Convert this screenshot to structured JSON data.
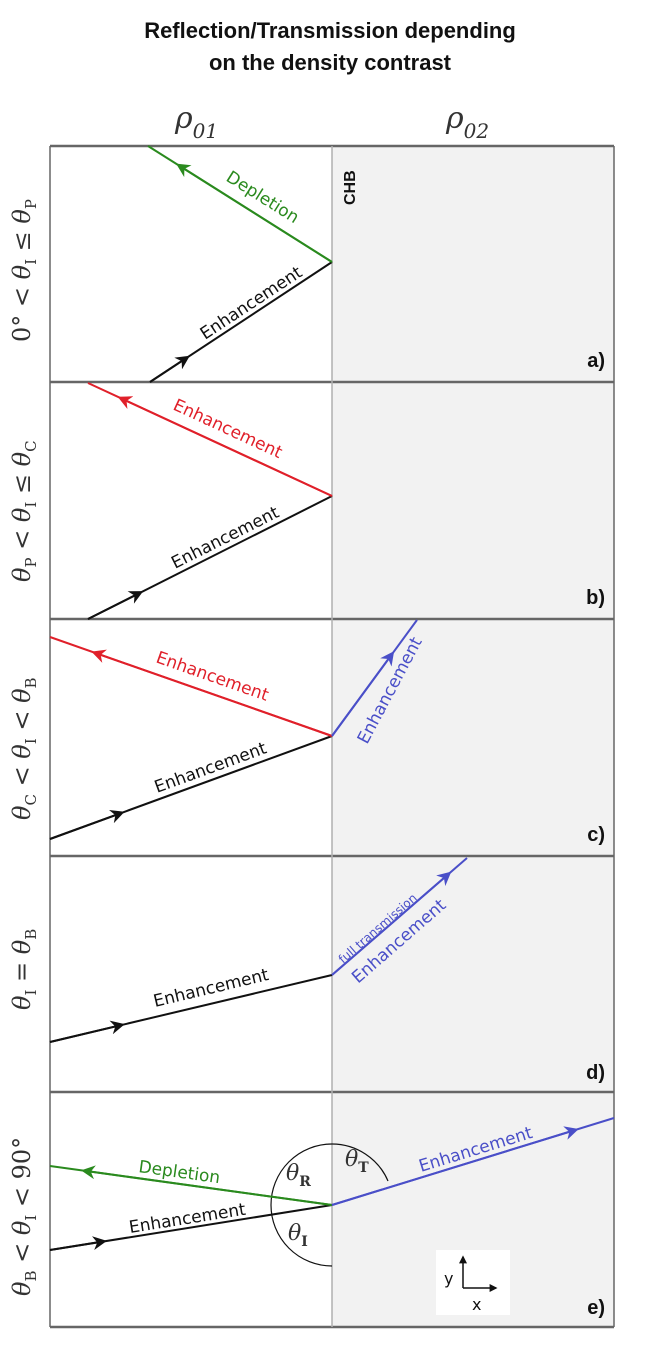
{
  "title_line1": "Reflection/Transmission depending",
  "title_line2": "on the density contrast",
  "columns": {
    "left": {
      "symbol": "ρ",
      "sub": "01"
    },
    "right": {
      "symbol": "ρ",
      "sub": "02"
    }
  },
  "boundary_label": "CHB",
  "colors": {
    "incident": "#111111",
    "depletion": "#2a8a1e",
    "enhancement_red": "#e0202a",
    "transmitted": "#4a4fc8",
    "medium2_fill": "#f2f2f2",
    "frame": "#666666"
  },
  "panels": [
    {
      "letter": "a)",
      "condition": {
        "pre": "0° < ",
        "mid": "θ",
        "mid_sub": "I",
        "rel": " ≤ ",
        "post": "θ",
        "post_sub": "P"
      },
      "rays": [
        {
          "kind": "incident",
          "label": "Enhancement"
        },
        {
          "kind": "reflected",
          "label": "Depletion"
        }
      ]
    },
    {
      "letter": "b)",
      "condition": {
        "pre": "θ",
        "pre_sub": "P",
        "rel1": " < ",
        "mid": "θ",
        "mid_sub": "I",
        "rel": " ≤ ",
        "post": "θ",
        "post_sub": "C"
      },
      "rays": [
        {
          "kind": "incident",
          "label": "Enhancement"
        },
        {
          "kind": "reflected",
          "label": "Enhancement"
        }
      ]
    },
    {
      "letter": "c)",
      "condition": {
        "pre": "θ",
        "pre_sub": "C",
        "rel1": " < ",
        "mid": "θ",
        "mid_sub": "I",
        "rel": " < ",
        "post": "θ",
        "post_sub": "B"
      },
      "rays": [
        {
          "kind": "incident",
          "label": "Enhancement"
        },
        {
          "kind": "reflected",
          "label": "Enhancement"
        },
        {
          "kind": "transmitted",
          "label": "Enhancement"
        }
      ]
    },
    {
      "letter": "d)",
      "condition": {
        "mid": "θ",
        "mid_sub": "I",
        "rel": " = ",
        "post": "θ",
        "post_sub": "B"
      },
      "rays": [
        {
          "kind": "incident",
          "label": "Enhancement"
        },
        {
          "kind": "transmitted",
          "label": "Enhancement",
          "note": "full transmission"
        }
      ]
    },
    {
      "letter": "e)",
      "condition": {
        "pre": "θ",
        "pre_sub": "B",
        "rel1": " < ",
        "mid": "θ",
        "mid_sub": "I",
        "rel": " < ",
        "post": "90°"
      },
      "rays": [
        {
          "kind": "incident",
          "label": "Enhancement"
        },
        {
          "kind": "reflected",
          "label": "Depletion"
        },
        {
          "kind": "transmitted",
          "label": "Enhancement"
        }
      ],
      "angles": [
        {
          "sym": "θ",
          "sub": "R"
        },
        {
          "sym": "θ",
          "sub": "T"
        },
        {
          "sym": "θ",
          "sub": "I"
        }
      ],
      "axes": {
        "x": "x",
        "y": "y"
      }
    }
  ]
}
